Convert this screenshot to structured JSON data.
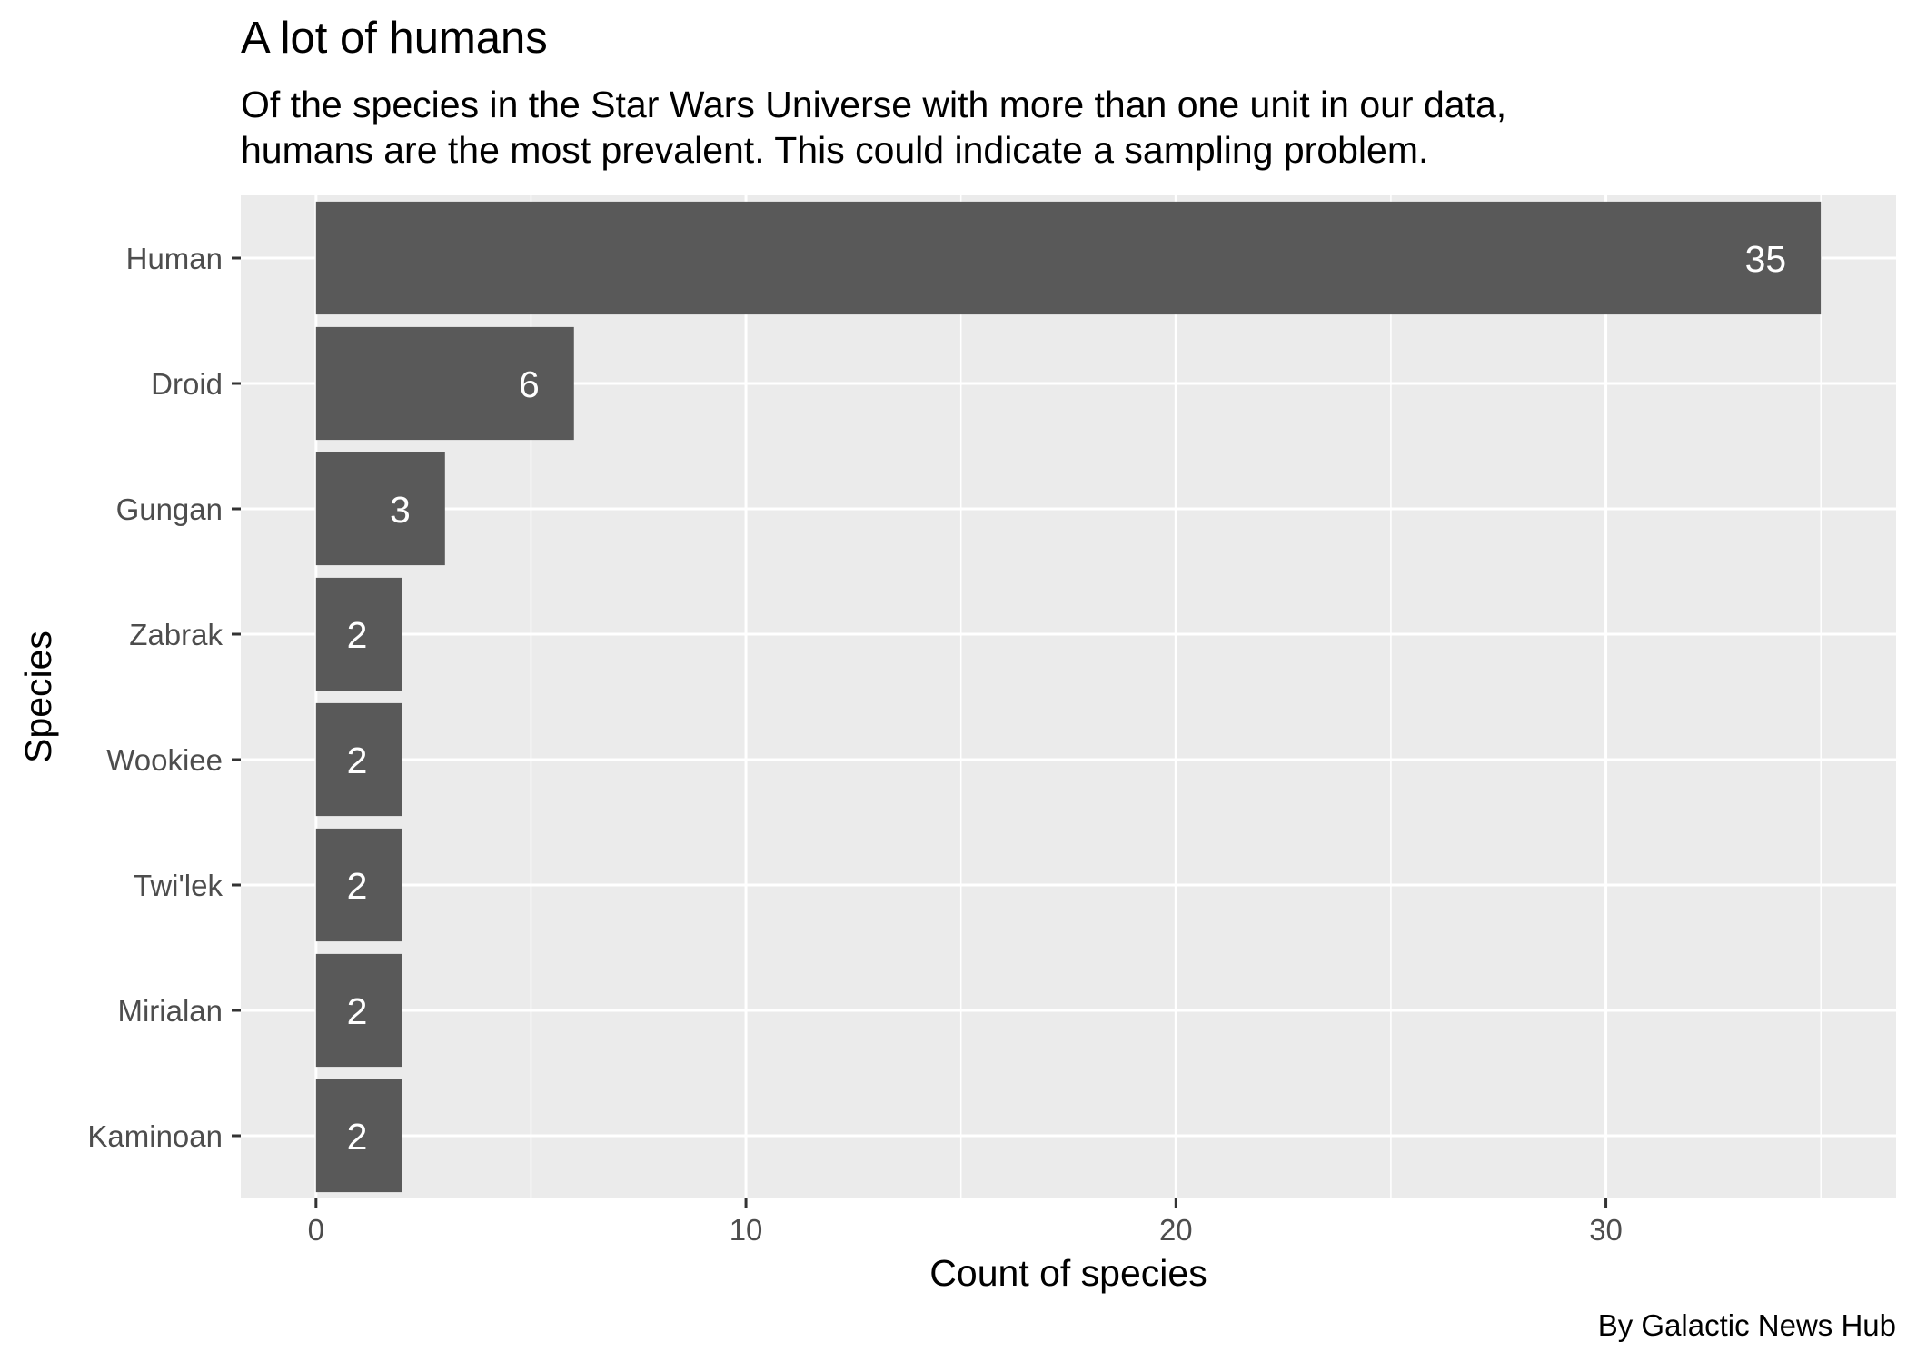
{
  "chart_data": {
    "type": "bar",
    "orientation": "horizontal",
    "title": "A lot of humans",
    "subtitle_lines": [
      "Of the species in the Star Wars Universe with more than one unit in our data,",
      "humans are the most prevalent. This could indicate a sampling problem."
    ],
    "caption": "By Galactic News Hub",
    "xlabel": "Count of species",
    "ylabel": "Species",
    "categories": [
      "Human",
      "Droid",
      "Gungan",
      "Zabrak",
      "Wookiee",
      "Twi'lek",
      "Mirialan",
      "Kaminoan"
    ],
    "values": [
      35,
      6,
      3,
      2,
      2,
      2,
      2,
      2
    ],
    "data_labels": [
      "35",
      "6",
      "3",
      "2",
      "2",
      "2",
      "2",
      "2"
    ],
    "x_ticks": [
      0,
      10,
      20,
      30
    ],
    "x_tick_labels": [
      "0",
      "10",
      "20",
      "30"
    ],
    "xlim": [
      -1.75,
      36.75
    ],
    "grid": true,
    "colors": {
      "bar": "#595959",
      "panel_background": "#ebebeb",
      "grid_line": "#ffffff",
      "bar_label": "#ffffff",
      "tick_label": "#4d4d4d",
      "tick_mark": "#333333"
    }
  }
}
